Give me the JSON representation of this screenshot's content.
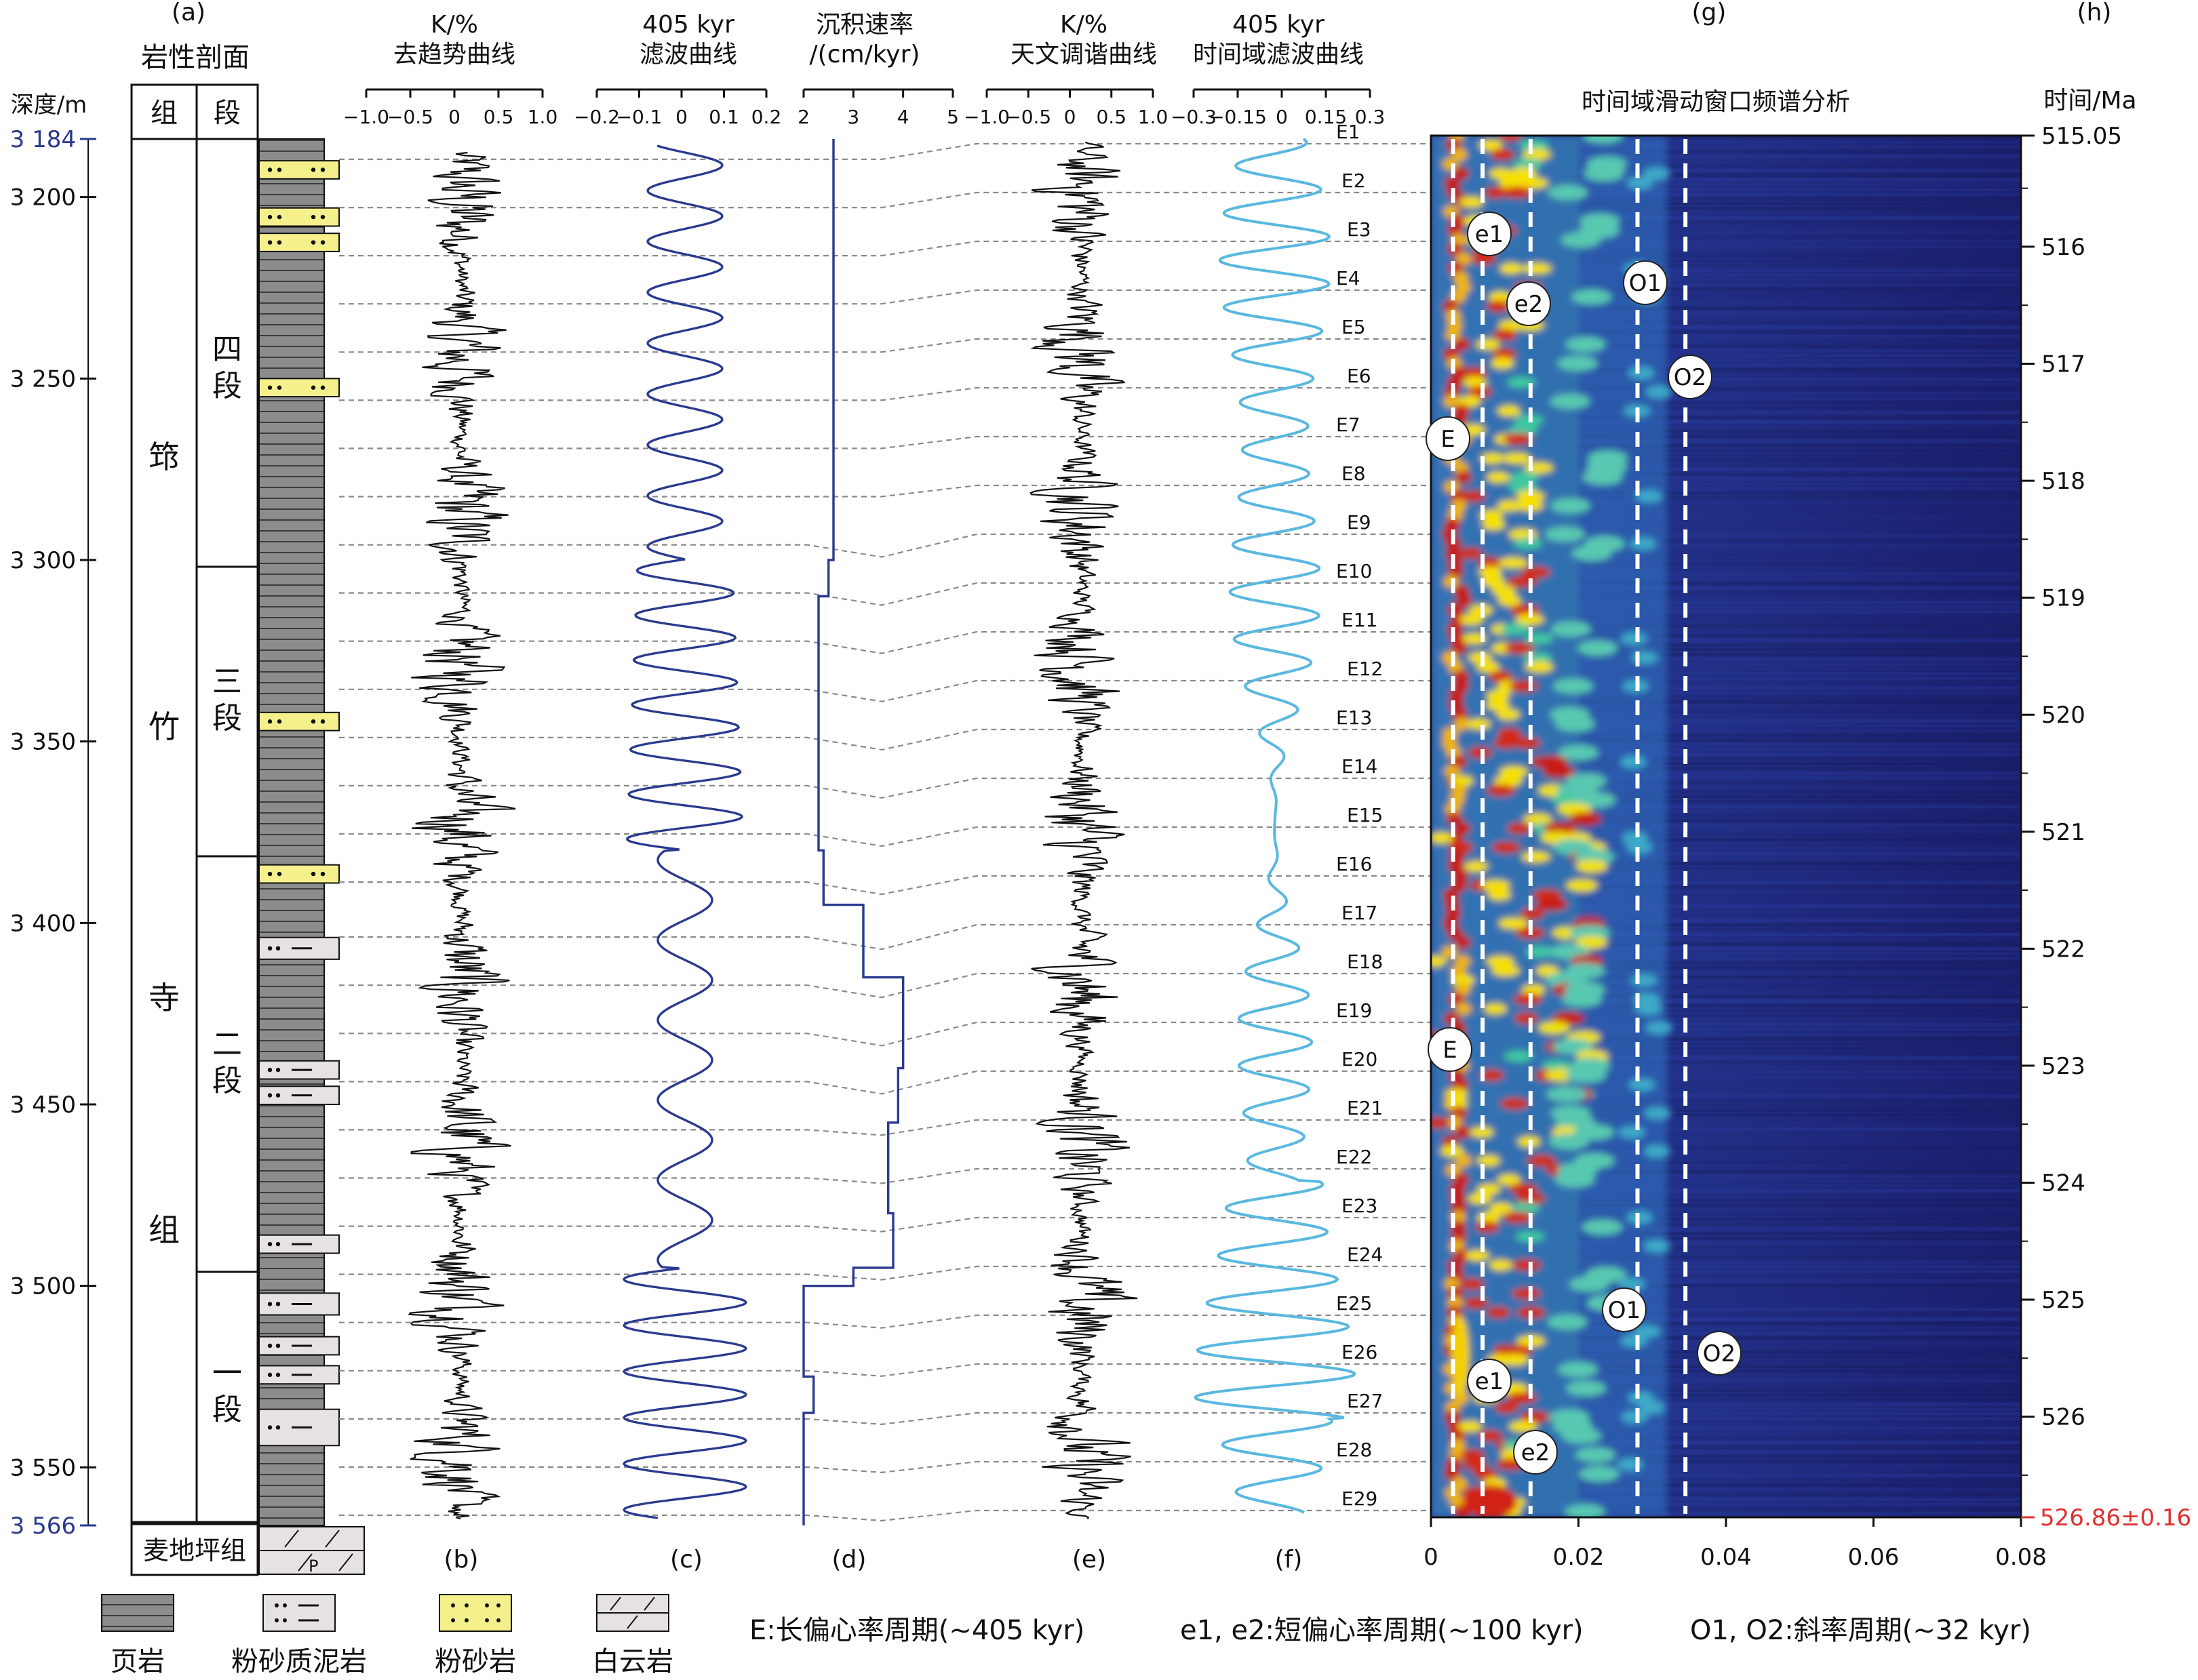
{
  "panels": {
    "a": "(a)",
    "b": "(b)",
    "c": "(c)",
    "d": "(d)",
    "e": "(e)",
    "f": "(f)",
    "g": "(g)",
    "h": "(h)"
  },
  "headers": {
    "lithology": "岩性剖面",
    "depth_axis": "深度/m",
    "col_formation": "组",
    "col_member": "段",
    "b": [
      "K/%",
      "去趋势曲线"
    ],
    "c": [
      "405 kyr",
      "滤波曲线"
    ],
    "d": [
      "沉积速率",
      "/(cm/kyr)"
    ],
    "e": [
      "K/%",
      "天文调谐曲线"
    ],
    "f": [
      "405 kyr",
      "时间域滤波曲线"
    ],
    "g": "时间域滑动窗口频谱分析",
    "h": "时间/Ma"
  },
  "formations": [
    {
      "text": "筇",
      "sub": "竹寺组",
      "chars": [
        "筇",
        "竹",
        "寺",
        "组"
      ]
    },
    {
      "text": "麦地坪组"
    }
  ],
  "members": [
    "四段",
    "三段",
    "二段",
    "一段"
  ],
  "depth_ticks": [
    "3 184",
    "3 200",
    "3 250",
    "3 300",
    "3 350",
    "3 400",
    "3 450",
    "3 500",
    "3 550",
    "3 566"
  ],
  "time_ticks": [
    "515.05",
    "516",
    "517",
    "518",
    "519",
    "520",
    "521",
    "522",
    "523",
    "524",
    "525",
    "526"
  ],
  "time_bottom": "526.86±0.16",
  "axis_b_ticks": [
    "−1.0",
    "−0.5",
    "0",
    "0.5",
    "1.0"
  ],
  "axis_c_ticks": [
    "−0.2",
    "−0.1",
    "0",
    "0.1",
    "0.2"
  ],
  "axis_d_ticks": [
    "2",
    "3",
    "4",
    "5"
  ],
  "axis_e_ticks": [
    "−1.0",
    "−0.5",
    "0",
    "0.5",
    "1.0"
  ],
  "axis_f_ticks": [
    "−0.3",
    "−0.15",
    "0",
    "0.15",
    "0.3"
  ],
  "axis_g_ticks": [
    "0",
    "0.02",
    "0.04",
    "0.06",
    "0.08"
  ],
  "e_labels": [
    "E1",
    "E2",
    "E3",
    "E4",
    "E5",
    "E6",
    "E7",
    "E8",
    "E9",
    "E10",
    "E11",
    "E12",
    "E13",
    "E14",
    "E15",
    "E16",
    "E17",
    "E18",
    "E19",
    "E20",
    "E21",
    "E22",
    "E23",
    "E24",
    "E25",
    "E26",
    "E27",
    "E28",
    "E29"
  ],
  "spectrum_labels": {
    "E": "E",
    "e1": "e1",
    "e2": "e2",
    "O1": "O1",
    "O2": "O2"
  },
  "legend": {
    "lithologies": [
      "页岩",
      "粉砂质泥岩",
      "粉砂岩",
      "白云岩"
    ],
    "dolomite_mark": "P",
    "notes": [
      "E:长偏心率周期(~405 kyr)",
      "e1, e2:短偏心率周期(~100 kyr)",
      "O1, O2:斜率周期(~32 kyr)"
    ]
  },
  "colors": {
    "filter_c": "#2b3a8f",
    "filter_f": "#5ab8e0",
    "rate": "#2b3a8f",
    "silt": "#f5f08c",
    "shale": "#8c8c8c",
    "siltmud": "#e6e2e2",
    "bottom_time": "#e03030",
    "depth_blue": "#2b3a8f",
    "spectrum_bg": "#1b1f6e"
  },
  "chart_data": {
    "type": "line",
    "depth_range_m": [
      3184,
      3566
    ],
    "time_range_ma": [
      515.05,
      526.86
    ],
    "sedimentation_rate_cm_per_kyr": {
      "depth_m": [
        3184,
        3300,
        3310,
        3380,
        3395,
        3415,
        3440,
        3455,
        3480,
        3495,
        3500,
        3525,
        3535,
        3566
      ],
      "rate": [
        2.6,
        2.5,
        2.3,
        2.4,
        3.2,
        4.0,
        3.9,
        3.7,
        3.8,
        3.0,
        2.0,
        2.2,
        2.0,
        1.9
      ]
    },
    "e405_cycles": 29,
    "spectrum_frequency_range": [
      0,
      0.08
    ],
    "dashed_frequencies": [
      0.003,
      0.007,
      0.0135,
      0.028,
      0.0345
    ]
  }
}
